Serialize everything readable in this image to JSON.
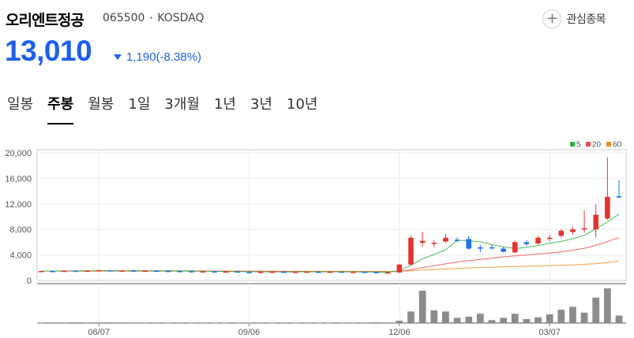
{
  "stock": {
    "name": "오리엔트정공",
    "code": "065500",
    "market": "KOSDAQ",
    "price": "13,010",
    "change": "1,190(-8.38%)",
    "direction": "down",
    "watch_label": "관심종목"
  },
  "tabs": [
    {
      "label": "일봉",
      "active": false
    },
    {
      "label": "주봉",
      "active": true
    },
    {
      "label": "월봉",
      "active": false
    },
    {
      "label": "1일",
      "active": false
    },
    {
      "label": "3개월",
      "active": false
    },
    {
      "label": "1년",
      "active": false
    },
    {
      "label": "3년",
      "active": false
    },
    {
      "label": "10년",
      "active": false
    }
  ],
  "colors": {
    "up": "#e5322d",
    "down": "#1e73e8",
    "ma5": "#27b43f",
    "ma20": "#f04c4c",
    "ma60": "#f08c1e",
    "volume": "#8c8c8c",
    "price": "#1e5fe8"
  },
  "icons": {
    "watch": "plus-circle-icon",
    "change": "down-triangle-icon"
  },
  "chart_data": {
    "type": "candlestick",
    "period": "weekly",
    "ylim": [
      0,
      20000
    ],
    "yticks": [
      "0",
      "4,000",
      "8,000",
      "12,000",
      "16,000",
      "20,000"
    ],
    "ytick_values": [
      0,
      4000,
      8000,
      12000,
      16000,
      20000
    ],
    "xlabels": [
      {
        "label": "06/07",
        "index": 5
      },
      {
        "label": "09/06",
        "index": 18
      },
      {
        "label": "12/06",
        "index": 31
      },
      {
        "label": "03/07",
        "index": 44
      }
    ],
    "legend": [
      "5",
      "20",
      "60"
    ],
    "legend_position": "top-right",
    "grid": true,
    "candles": [
      [
        1420,
        1520,
        1380,
        1480
      ],
      [
        1480,
        1560,
        1430,
        1450
      ],
      [
        1450,
        1550,
        1420,
        1520
      ],
      [
        1520,
        1600,
        1460,
        1470
      ],
      [
        1470,
        1560,
        1440,
        1540
      ],
      [
        1540,
        1720,
        1500,
        1600
      ],
      [
        1600,
        1660,
        1480,
        1500
      ],
      [
        1500,
        1580,
        1450,
        1560
      ],
      [
        1560,
        1640,
        1500,
        1520
      ],
      [
        1520,
        1580,
        1460,
        1540
      ],
      [
        1540,
        1600,
        1480,
        1500
      ],
      [
        1500,
        1560,
        1430,
        1480
      ],
      [
        1480,
        1540,
        1400,
        1450
      ],
      [
        1450,
        1520,
        1380,
        1400
      ],
      [
        1400,
        1480,
        1350,
        1440
      ],
      [
        1440,
        1500,
        1360,
        1380
      ],
      [
        1380,
        1460,
        1320,
        1420
      ],
      [
        1420,
        1480,
        1300,
        1340
      ],
      [
        1340,
        1420,
        1280,
        1300
      ],
      [
        1300,
        1400,
        1260,
        1350
      ],
      [
        1350,
        1420,
        1300,
        1370
      ],
      [
        1370,
        1440,
        1310,
        1330
      ],
      [
        1330,
        1400,
        1290,
        1360
      ],
      [
        1360,
        1420,
        1300,
        1380
      ],
      [
        1380,
        1450,
        1320,
        1350
      ],
      [
        1350,
        1420,
        1300,
        1380
      ],
      [
        1380,
        1440,
        1320,
        1340
      ],
      [
        1340,
        1400,
        1290,
        1360
      ],
      [
        1360,
        1420,
        1300,
        1320
      ],
      [
        1320,
        1420,
        1150,
        1200
      ],
      [
        1200,
        1300,
        1120,
        1250
      ],
      [
        1250,
        2600,
        1200,
        2500
      ],
      [
        2500,
        7000,
        2400,
        6700
      ],
      [
        5900,
        7600,
        5300,
        6200
      ],
      [
        5800,
        6300,
        5200,
        5900
      ],
      [
        6100,
        7300,
        5900,
        6700
      ],
      [
        6400,
        6800,
        6000,
        6300
      ],
      [
        6500,
        6900,
        4800,
        5000
      ],
      [
        5200,
        5600,
        4400,
        5000
      ],
      [
        5200,
        5600,
        4900,
        5100
      ],
      [
        5000,
        5300,
        4400,
        4500
      ],
      [
        4400,
        6300,
        4300,
        6000
      ],
      [
        6000,
        6300,
        5400,
        5700
      ],
      [
        5800,
        7000,
        5600,
        6700
      ],
      [
        6500,
        7100,
        6100,
        6700
      ],
      [
        7000,
        8100,
        6700,
        7800
      ],
      [
        7600,
        8400,
        7200,
        8000
      ],
      [
        8000,
        11000,
        7500,
        8200
      ],
      [
        8000,
        11900,
        6800,
        10300
      ],
      [
        9700,
        19300,
        9500,
        13100
      ],
      [
        13200,
        15700,
        12900,
        13010
      ]
    ],
    "volume": [
      0.3,
      0.5,
      0.4,
      0.6,
      0.4,
      0.5,
      0.6,
      0.5,
      0.4,
      0.3,
      0.3,
      0.3,
      0.3,
      0.3,
      0.3,
      0.3,
      0.3,
      0.3,
      0.3,
      0.3,
      0.3,
      0.3,
      0.3,
      0.3,
      0.3,
      0.3,
      0.3,
      0.3,
      0.3,
      0.6,
      0.5,
      2.0,
      10.0,
      28.0,
      11.0,
      10.0,
      4.5,
      5.5,
      8.0,
      2.5,
      4.5,
      8.0,
      3.5,
      5.0,
      7.5,
      11.5,
      14.0,
      9.0,
      22.0,
      30.0,
      6.5
    ],
    "ma5": [
      1470,
      1480,
      1480,
      1490,
      1500,
      1510,
      1520,
      1520,
      1530,
      1520,
      1510,
      1510,
      1490,
      1470,
      1450,
      1430,
      1410,
      1390,
      1370,
      1360,
      1350,
      1350,
      1350,
      1360,
      1360,
      1360,
      1360,
      1360,
      1350,
      1320,
      1300,
      1520,
      2380,
      3370,
      4070,
      4800,
      6300,
      6240,
      6060,
      5620,
      5280,
      5000,
      5200,
      5480,
      5840,
      6140,
      6540,
      7080,
      8100,
      9200,
      10400
    ],
    "ma20": [
      1480,
      1480,
      1490,
      1490,
      1500,
      1500,
      1500,
      1500,
      1510,
      1510,
      1500,
      1500,
      1500,
      1500,
      1490,
      1480,
      1470,
      1460,
      1450,
      1440,
      1430,
      1420,
      1410,
      1400,
      1390,
      1380,
      1380,
      1370,
      1370,
      1360,
      1350,
      1420,
      1700,
      2000,
      2300,
      2600,
      2900,
      3100,
      3300,
      3500,
      3700,
      3850,
      4000,
      4150,
      4300,
      4500,
      4750,
      5050,
      5500,
      6100,
      6750
    ],
    "ma60": [
      1470,
      1470,
      1470,
      1470,
      1470,
      1470,
      1470,
      1470,
      1470,
      1470,
      1470,
      1470,
      1470,
      1470,
      1470,
      1470,
      1470,
      1470,
      1460,
      1460,
      1460,
      1460,
      1450,
      1450,
      1450,
      1440,
      1440,
      1440,
      1430,
      1430,
      1430,
      1460,
      1530,
      1620,
      1710,
      1800,
      1890,
      1960,
      2020,
      2080,
      2130,
      2180,
      2230,
      2280,
      2330,
      2390,
      2450,
      2530,
      2640,
      2800,
      3060
    ]
  }
}
